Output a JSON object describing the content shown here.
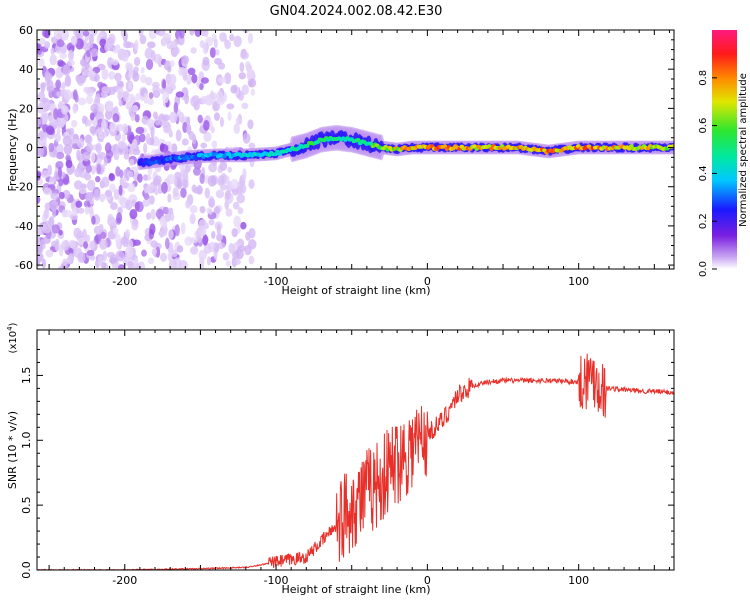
{
  "figure": {
    "title": "GN04.2024.002.08.42.E30"
  },
  "chart_data": [
    {
      "type": "heatmap",
      "xlabel": "Height of straight line (km)",
      "ylabel": "Frequency (Hz)",
      "xlim": [
        -258,
        163
      ],
      "ylim": [
        -62,
        60
      ],
      "x_ticks": [
        -200,
        -100,
        0,
        100
      ],
      "y_ticks": [
        60,
        40,
        20,
        0,
        -20,
        -40,
        -60
      ],
      "colorbar": {
        "label": "Normalized spectral amplitude",
        "range": [
          0,
          1
        ],
        "ticks": [
          "0.0",
          "0.2",
          "0.4",
          "0.6",
          "0.8"
        ],
        "colormap": [
          "#ffffff",
          "#c9a6f2",
          "#7a1fe0",
          "#1a1aff",
          "#00c8ff",
          "#00e8a0",
          "#2ee62e",
          "#e0e600",
          "#ff8800",
          "#ff1a1a",
          "#ff1a80"
        ]
      },
      "ridge": {
        "x": [
          -190,
          -180,
          -160,
          -140,
          -120,
          -100,
          -90,
          -80,
          -70,
          -60,
          -50,
          -40,
          -30,
          -20,
          -10,
          0,
          20,
          40,
          60,
          80,
          90,
          100,
          110,
          120,
          140,
          163
        ],
        "freq": [
          -8,
          -7,
          -5,
          -4,
          -4,
          -3,
          -1,
          1,
          4,
          5,
          4,
          2,
          0,
          -1,
          0,
          0,
          0,
          0,
          0,
          -2,
          -1,
          0,
          0,
          0,
          0,
          0
        ],
        "amplitude": [
          0.3,
          0.35,
          0.4,
          0.45,
          0.5,
          0.5,
          0.55,
          0.6,
          0.65,
          0.6,
          0.55,
          0.6,
          0.7,
          0.8,
          0.85,
          0.9,
          0.88,
          0.85,
          0.85,
          0.9,
          0.85,
          0.88,
          0.9,
          0.85,
          0.8,
          0.8
        ]
      },
      "noise_region_km": [
        -258,
        -115
      ]
    },
    {
      "type": "line",
      "xlabel": "Height of straight line (km)",
      "ylabel": "SNR (10 * v/v)",
      "y_multiplier": "(x10",
      "y_multiplier_exp": "4",
      "xlim": [
        -258,
        163
      ],
      "ylim": [
        0,
        1.85
      ],
      "x_ticks": [
        -200,
        -100,
        0,
        100
      ],
      "y_ticks": [
        "0.0",
        "0.5",
        "1.0",
        "1.5"
      ],
      "color": "#e8302a",
      "series": [
        {
          "x": [
            -258,
            -200,
            -150,
            -120,
            -100,
            -90,
            -80,
            -70,
            -60,
            -50,
            -40,
            -30,
            -20,
            -10,
            0,
            10,
            20,
            30,
            40,
            50,
            60,
            80,
            100,
            105,
            110,
            115,
            120,
            140,
            163
          ],
          "values": [
            0.0,
            0.0,
            0.01,
            0.02,
            0.06,
            0.08,
            0.1,
            0.22,
            0.35,
            0.5,
            0.6,
            0.7,
            0.85,
            0.95,
            1.05,
            1.15,
            1.35,
            1.42,
            1.45,
            1.46,
            1.46,
            1.46,
            1.45,
            1.48,
            1.5,
            1.4,
            1.4,
            1.38,
            1.37
          ]
        }
      ]
    }
  ]
}
